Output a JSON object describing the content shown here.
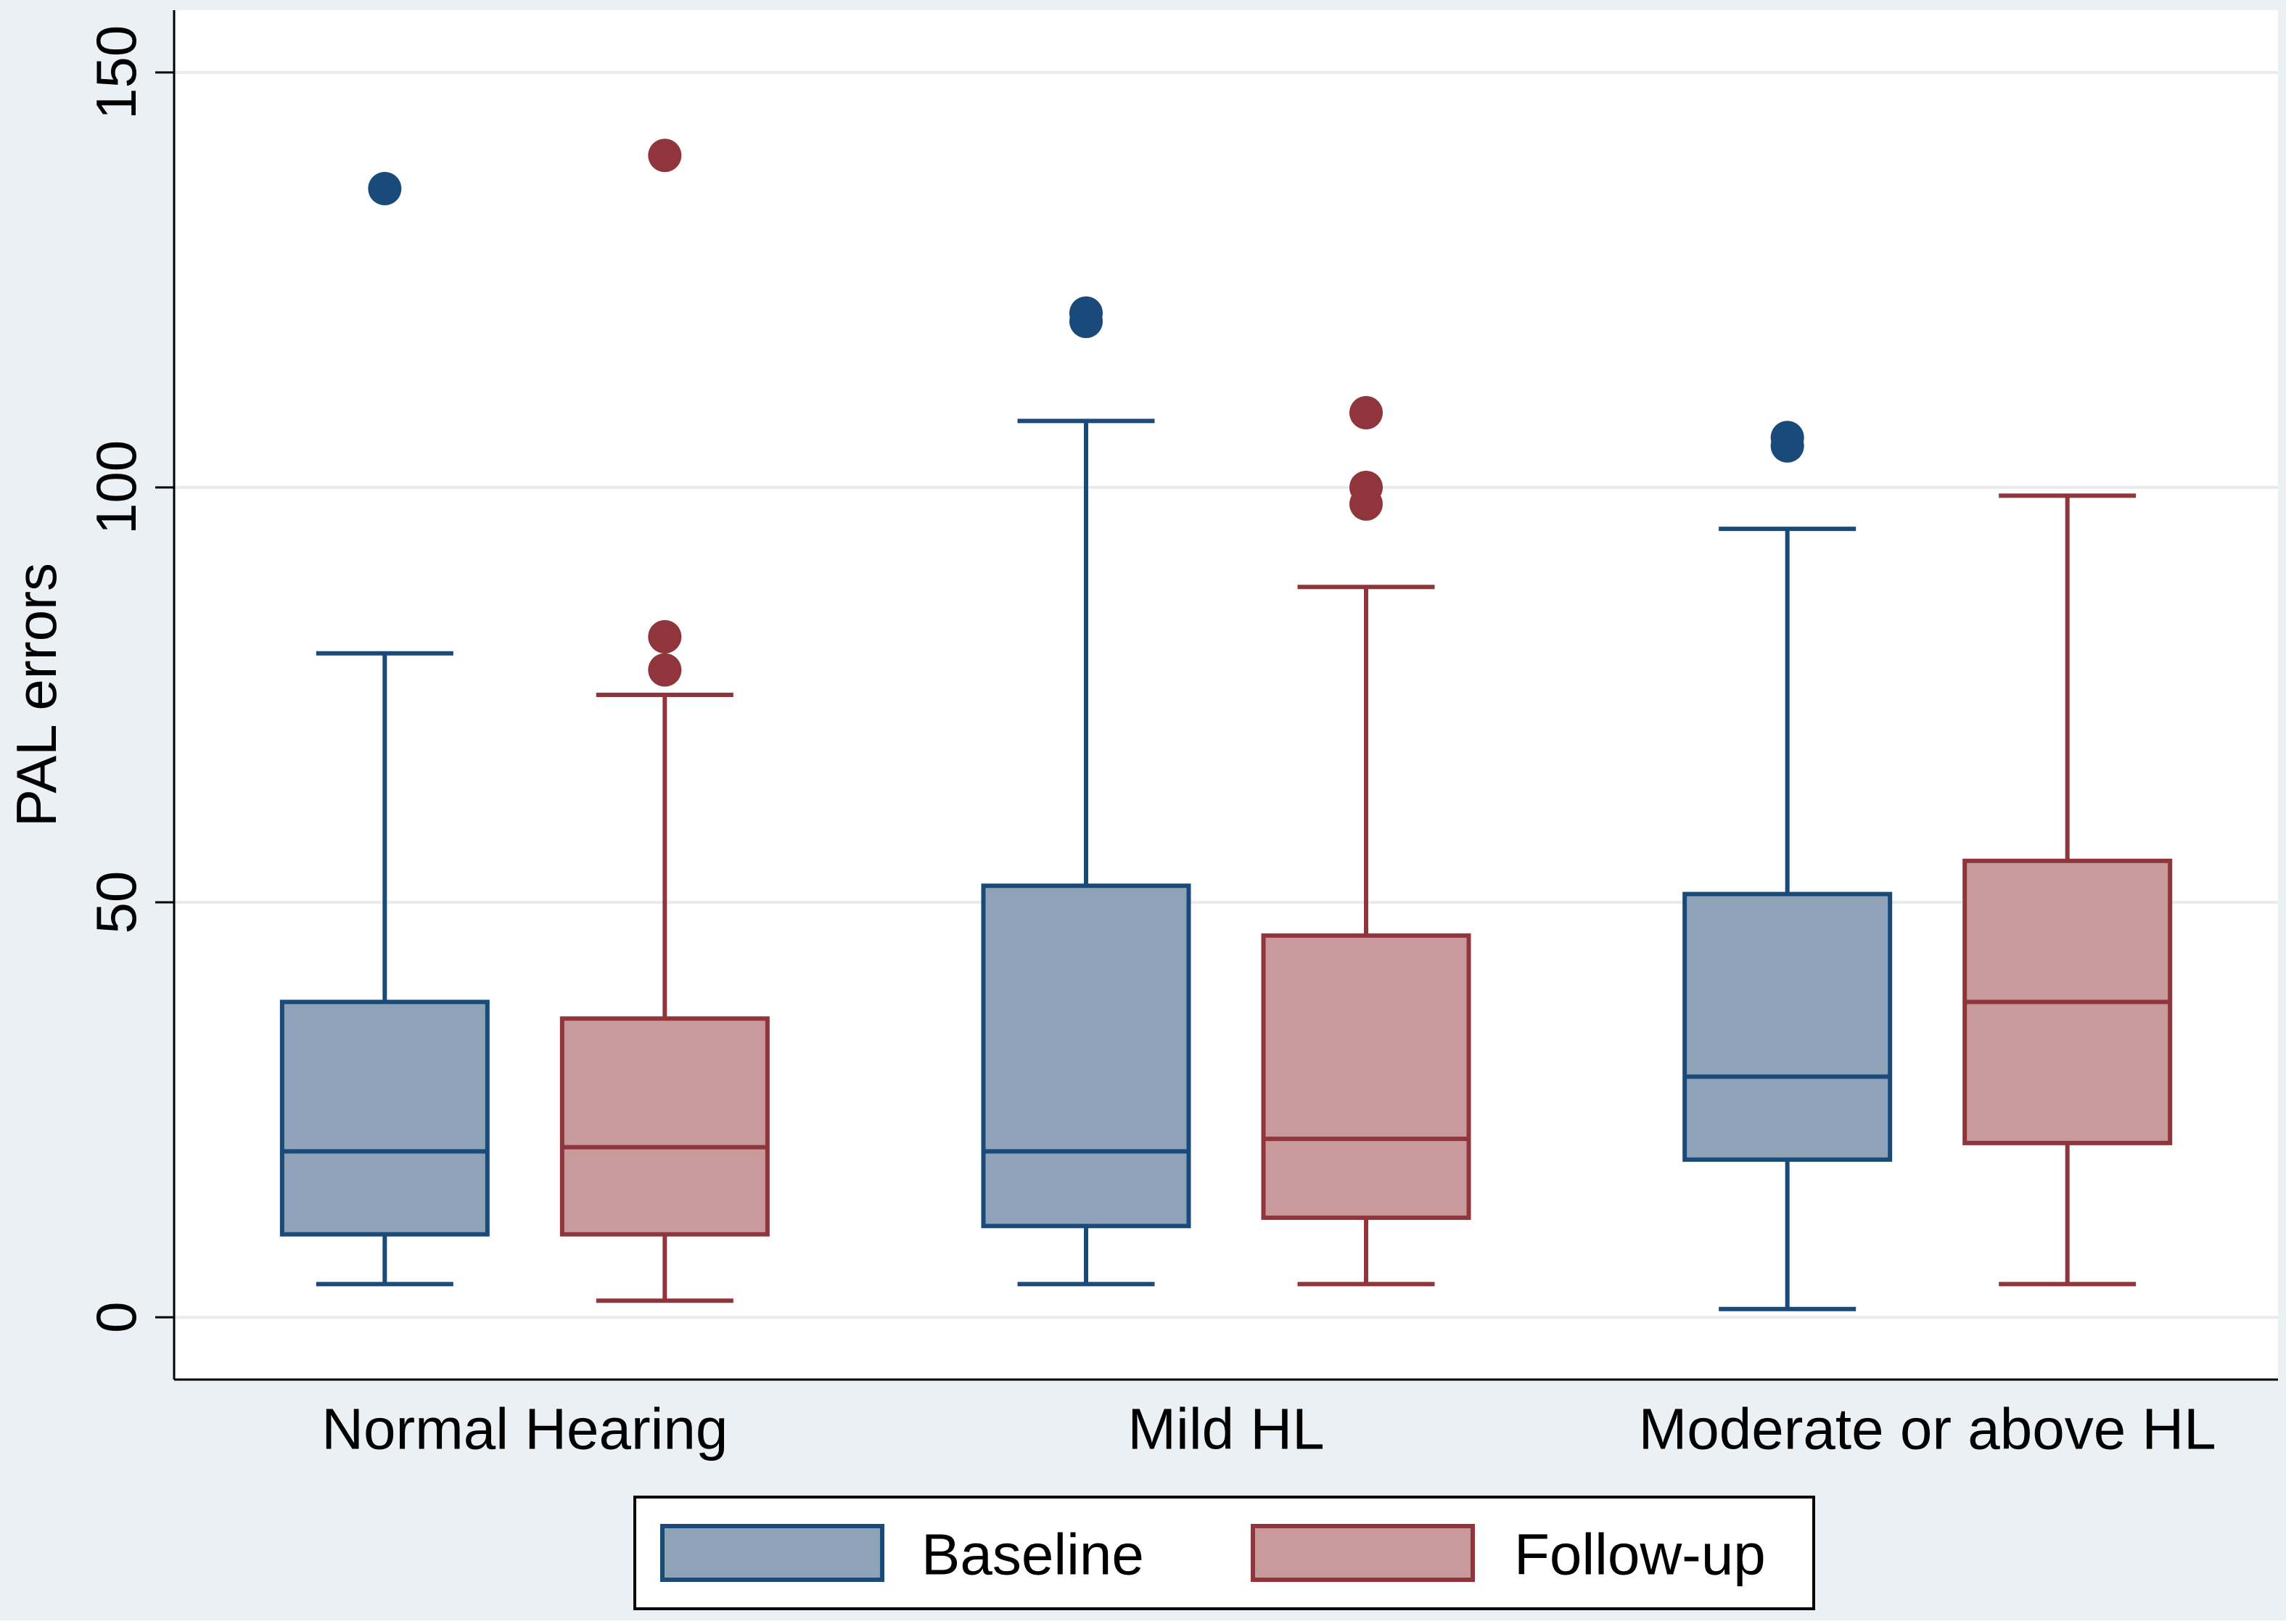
{
  "chart_data": {
    "type": "boxplot",
    "title": "",
    "xlabel": "",
    "ylabel": "PAL errors",
    "ylim": [
      -7.5,
      157.5
    ],
    "yticks": [
      0,
      50,
      100,
      150
    ],
    "ytick_labels": [
      "0",
      "50",
      "100",
      "150"
    ],
    "grid": true,
    "legend_position": "bottom",
    "categories": [
      "Normal Hearing",
      "Mild HL",
      "Moderate or above HL"
    ],
    "series": [
      {
        "name": "Baseline",
        "color": "#1a4a7a",
        "fill": "#8ea3b8",
        "boxes": [
          {
            "category": "Normal Hearing",
            "whisker_low": 4,
            "q1": 10,
            "median": 20,
            "q3": 38,
            "whisker_high": 80,
            "outliers": [
              136
            ]
          },
          {
            "category": "Mild HL",
            "whisker_low": 4,
            "q1": 11,
            "median": 20,
            "q3": 52,
            "whisker_high": 108,
            "outliers": [
              120,
              121
            ]
          },
          {
            "category": "Moderate or above HL",
            "whisker_low": 1,
            "q1": 19,
            "median": 29,
            "q3": 51,
            "whisker_high": 95,
            "outliers": [
              105,
              106
            ]
          }
        ]
      },
      {
        "name": "Follow-up",
        "color": "#90353b",
        "fill": "#c99a9c",
        "boxes": [
          {
            "category": "Normal Hearing",
            "whisker_low": 2,
            "q1": 10,
            "median": 20.5,
            "q3": 36,
            "whisker_high": 75,
            "outliers": [
              78,
              82,
              140
            ]
          },
          {
            "category": "Mild HL",
            "whisker_low": 4,
            "q1": 12,
            "median": 21.5,
            "q3": 46,
            "whisker_high": 88,
            "outliers": [
              98,
              100,
              109
            ]
          },
          {
            "category": "Moderate or above HL",
            "whisker_low": 4,
            "q1": 21,
            "median": 38,
            "q3": 55,
            "whisker_high": 99,
            "outliers": []
          }
        ]
      }
    ]
  },
  "colors": {
    "outer_background": "#eaf0f3",
    "plot_background": "#ffffff",
    "gridline": "#e6ecef",
    "axis": "#000000",
    "text": "#000000"
  }
}
